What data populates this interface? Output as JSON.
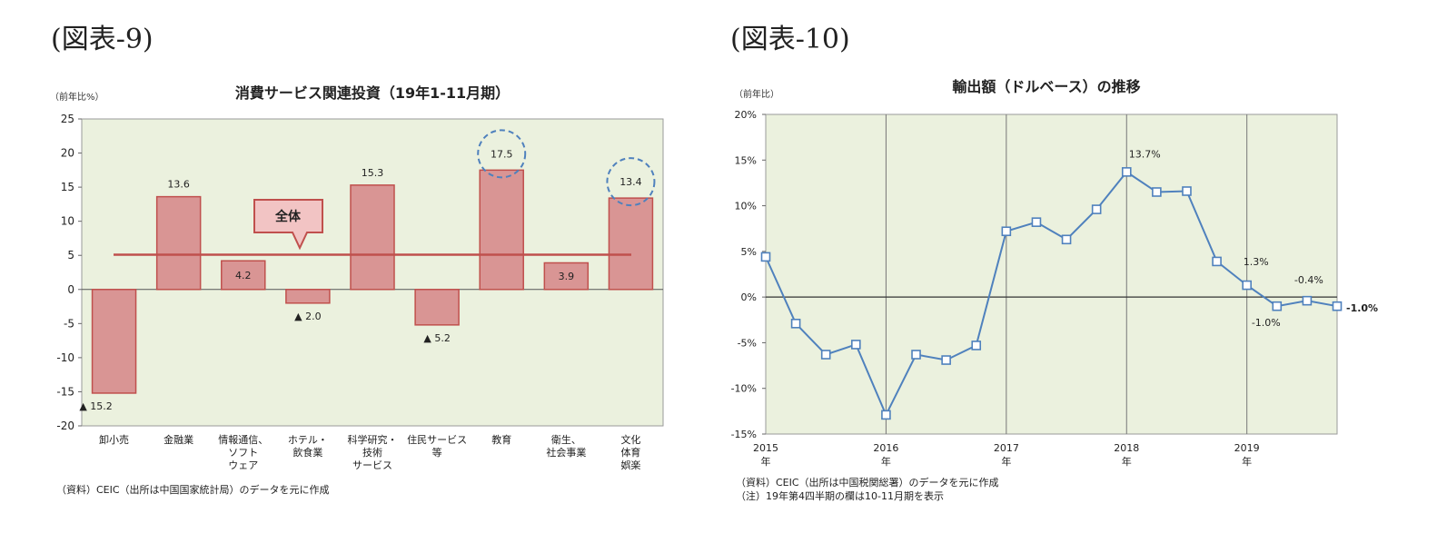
{
  "figures": [
    {
      "label": "(図表-9)",
      "chart_data": {
        "type": "bar",
        "title": "消費サービス関連投資（19年1-11月期）",
        "ylabel": "（前年比%）",
        "ylim": [
          -20,
          25
        ],
        "yticks": [
          25,
          20,
          15,
          10,
          5,
          0,
          -5,
          -10,
          -15,
          -20
        ],
        "categories": [
          "卸小売",
          "金融業",
          "情報通信、\nソフト\nウェア",
          "ホテル・\n飲食業",
          "科学研究・\n技術\nサービス",
          "住民サービス\n等",
          "教育",
          "衛生、\n社会事業",
          "文化\n体育\n娯楽"
        ],
        "values": [
          -15.2,
          13.6,
          4.2,
          -2.0,
          15.3,
          -5.2,
          17.5,
          3.9,
          13.4
        ],
        "value_labels": [
          "▲ 15.2",
          "13.6",
          "4.2",
          "▲ 2.0",
          "15.3",
          "▲ 5.2",
          "17.5",
          "3.9",
          "13.4"
        ],
        "reference_line": {
          "label": "全体",
          "value": 5.1
        },
        "highlighted": [
          "教育",
          "文化\n体育\n娯楽"
        ],
        "colors": {
          "bar_fill": "#d99594",
          "bar_stroke": "#c0504d",
          "line": "#c0504d",
          "plot_bg": "#ebf1de",
          "circle": "#4f81bd",
          "callout_fill": "#f2c4c4"
        },
        "grid": false,
        "source": "（資料）CEIC（出所は中国国家統計局）のデータを元に作成"
      }
    },
    {
      "label": "(図表-10)",
      "chart_data": {
        "type": "line",
        "title": "輸出額（ドルベース）の推移",
        "ylabel": "（前年比）",
        "ylim": [
          -15,
          20
        ],
        "yticks": [
          "20%",
          "15%",
          "10%",
          "5%",
          "0%",
          "-5%",
          "-10%",
          "-15%"
        ],
        "year_ticks": [
          {
            "year": "2015",
            "unit": "年"
          },
          {
            "year": "2016",
            "unit": "年"
          },
          {
            "year": "2017",
            "unit": "年"
          },
          {
            "year": "2018",
            "unit": "年"
          },
          {
            "year": "2019",
            "unit": "年"
          }
        ],
        "series": [
          {
            "values": [
              4.4,
              -2.9,
              -6.3,
              -5.2,
              -12.9,
              -6.3,
              -6.9,
              -5.3,
              7.2,
              8.2,
              6.3,
              9.6,
              13.7,
              11.5,
              11.6,
              3.9,
              1.3,
              -1.0,
              -0.4,
              -1.0
            ]
          }
        ],
        "value_labels": [
          {
            "index": 12,
            "text": "13.7%"
          },
          {
            "index": 16,
            "text": "1.3%"
          },
          {
            "index": 17,
            "text": "-1.0%"
          },
          {
            "index": 18,
            "text": "-0.4%"
          },
          {
            "index": 19,
            "text": "-1.0%"
          }
        ],
        "colors": {
          "line": "#4f81bd",
          "plot_bg": "#ebf1de"
        },
        "grid": "vertical lines at year boundaries",
        "notes": [
          "（資料）CEIC（出所は中国税関総署）のデータを元に作成",
          "（注）19年第4四半期の欄は10-11月期を表示"
        ]
      }
    }
  ]
}
